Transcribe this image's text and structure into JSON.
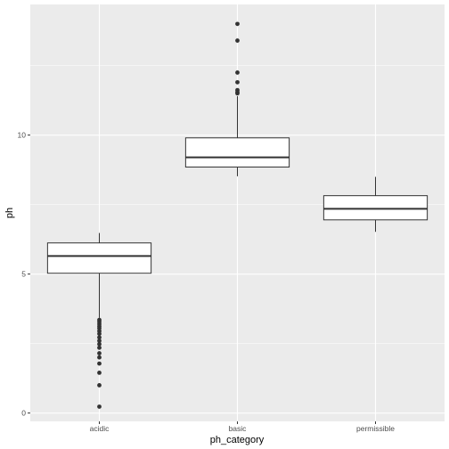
{
  "chart_data": {
    "type": "boxplot",
    "xlabel": "ph_category",
    "ylabel": "ph",
    "categories": [
      "acidic",
      "basic",
      "permissible"
    ],
    "ylim": [
      -0.3,
      14.7
    ],
    "yticks": [
      0,
      5,
      10
    ],
    "grid": true,
    "boxes": [
      {
        "category": "acidic",
        "q1": 5.03,
        "median": 5.65,
        "q3": 6.12,
        "whisker_low": 3.42,
        "whisker_high": 6.48,
        "outliers": [
          3.35,
          3.28,
          3.2,
          3.12,
          3.05,
          2.95,
          2.85,
          2.72,
          2.6,
          2.48,
          2.35,
          2.15,
          2.0,
          1.78,
          1.45,
          1.0,
          0.23
        ]
      },
      {
        "category": "basic",
        "q1": 8.85,
        "median": 9.2,
        "q3": 9.9,
        "whisker_low": 8.52,
        "whisker_high": 11.4,
        "outliers": [
          11.5,
          11.55,
          11.62,
          11.9,
          12.25,
          13.4,
          14.0
        ]
      },
      {
        "category": "permissible",
        "q1": 6.95,
        "median": 7.35,
        "q3": 7.82,
        "whisker_low": 6.52,
        "whisker_high": 8.5,
        "outliers": []
      }
    ]
  }
}
